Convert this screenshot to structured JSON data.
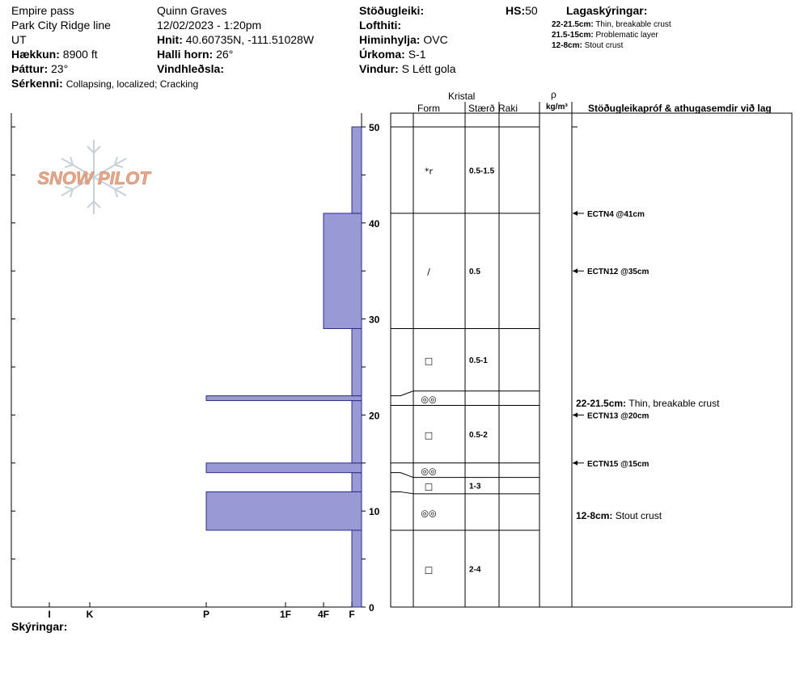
{
  "header": {
    "location": "Empire pass",
    "route": "Park City Ridge line",
    "state": "UT",
    "elevation_label": "Hækkun:",
    "elevation_value": "8900 ft",
    "aspect_label": "Þáttur:",
    "aspect_value": "23°",
    "observer": "Quinn Graves",
    "datetime": "12/02/2023 - 1:20pm",
    "coords_label": "Hnit:",
    "coords_value": "40.60735N, -111.51028W",
    "slope_label": "Halli horn:",
    "slope_value": "26°",
    "wind_loading_label": "Vindhleðsla:",
    "stability_label": "Stöðugleiki:",
    "air_temp_label": "Lofthiti:",
    "sky_label": "Himinhylja:",
    "sky_value": "OVC",
    "precip_label": "Úrkoma:",
    "precip_value": "S-1",
    "wind_label": "Vindur:",
    "wind_value": "S Létt gola",
    "hs_label": "HS:",
    "hs_value": "50",
    "characteristics_label": "Sérkenni:",
    "characteristics_value": "Collapsing, localized; Cracking",
    "comments_label": "Skýringar:"
  },
  "legend": {
    "title": "Lagaskýringar:",
    "items": [
      {
        "range": "22-21.5cm:",
        "text": "Thin, breakable crust"
      },
      {
        "range": "21.5-15cm:",
        "text": "Problematic layer"
      },
      {
        "range": "12-8cm:",
        "text": "Stout crust"
      }
    ]
  },
  "columns": {
    "kristal": "Kristal",
    "form": "Form",
    "size": "Stærð",
    "moisture": "Raki",
    "rho": "ρ",
    "density_unit": "kg/m³",
    "tests": "Stöðugleikapróf & athugasemdir við lag"
  },
  "logo_text": "SNOW PILOT",
  "colors": {
    "bar_fill": "#9999d6",
    "bar_stroke": "#2b2b8a",
    "logo": "#e8a88a"
  },
  "chart_data": {
    "type": "bar",
    "orientation": "horizontal",
    "title": "",
    "ylabel": "",
    "xlabel": "",
    "ylim": [
      0,
      50
    ],
    "y_ticks": [
      0,
      10,
      20,
      30,
      40,
      50
    ],
    "x_categories": [
      "I",
      "K",
      "P",
      "1F",
      "4F",
      "F"
    ],
    "layers": [
      {
        "bottom": 0,
        "top": 8,
        "hardness": "F"
      },
      {
        "bottom": 8,
        "top": 12,
        "hardness": "P"
      },
      {
        "bottom": 12,
        "top": 14,
        "hardness": "F"
      },
      {
        "bottom": 14,
        "top": 15,
        "hardness": "P"
      },
      {
        "bottom": 15,
        "top": 21.5,
        "hardness": "F"
      },
      {
        "bottom": 21.5,
        "top": 22,
        "hardness": "P"
      },
      {
        "bottom": 22,
        "top": 29,
        "hardness": "F"
      },
      {
        "bottom": 29,
        "top": 41,
        "hardness": "4F"
      },
      {
        "bottom": 41,
        "top": 50,
        "hardness": "F"
      }
    ],
    "grain_layers": [
      {
        "bottom": 41,
        "top": 50,
        "form": "*r",
        "size": "0.5-1.5"
      },
      {
        "bottom": 29,
        "top": 41,
        "form": "/",
        "size": "0.5"
      },
      {
        "bottom": 22,
        "top": 29,
        "form": "□",
        "size": "0.5-1"
      },
      {
        "bottom": 21,
        "top": 22,
        "form": "◎◎",
        "size": ""
      },
      {
        "bottom": 15,
        "top": 21,
        "form": "□",
        "size": "0.5-2"
      },
      {
        "bottom": 14,
        "top": 15,
        "form": "◎◎",
        "size": ""
      },
      {
        "bottom": 12,
        "top": 14,
        "form": "□",
        "size": "1-3"
      },
      {
        "bottom": 8,
        "top": 12,
        "form": "◎◎",
        "size": ""
      },
      {
        "bottom": 0,
        "top": 8,
        "form": "□",
        "size": "2-4"
      }
    ],
    "tests": [
      {
        "depth": 41,
        "label": "ECTN4 @41cm"
      },
      {
        "depth": 35,
        "label": "ECTN12 @35cm"
      },
      {
        "depth": 20,
        "label": "ECTN13 @20cm"
      },
      {
        "depth": 15,
        "label": "ECTN15 @15cm"
      }
    ],
    "comments": [
      {
        "depth": 21.2,
        "range": "22-21.5cm:",
        "text": "Thin, breakable crust"
      },
      {
        "depth": 9.5,
        "range": "12-8cm:",
        "text": "Stout crust"
      }
    ]
  }
}
